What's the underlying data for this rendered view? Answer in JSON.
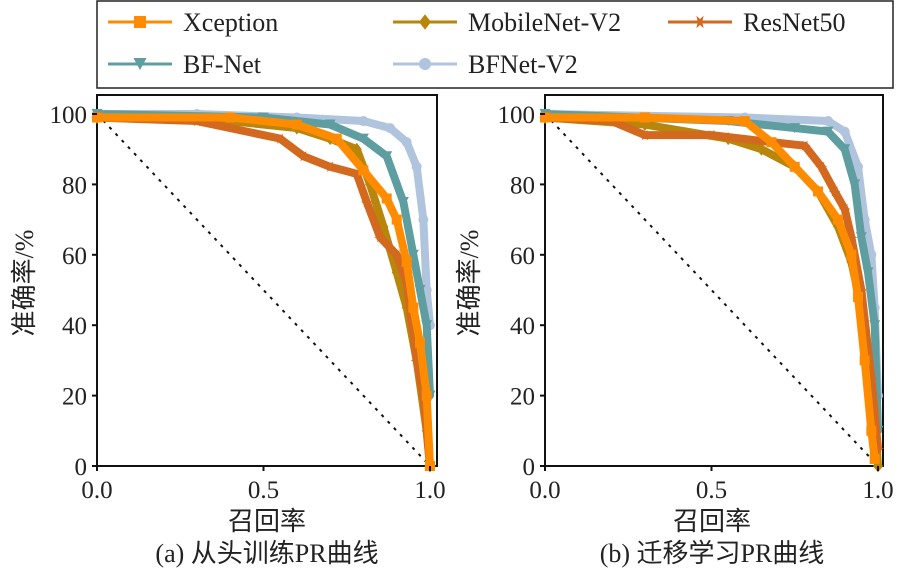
{
  "chart_data": {
    "legend": {
      "placement": "top",
      "entries": [
        {
          "name": "Xception",
          "color": "#FF8C00",
          "marker": "square"
        },
        {
          "name": "MobileNet-V2",
          "color": "#B8860B",
          "marker": "diamond"
        },
        {
          "name": "ResNet50",
          "color": "#D2691E",
          "marker": "star"
        },
        {
          "name": "BF-Net",
          "color": "#5F9EA0",
          "marker": "triangle-down"
        },
        {
          "name": "BFNet-V2",
          "color": "#B0C4DE",
          "marker": "circle"
        }
      ]
    },
    "panels": [
      {
        "type": "line",
        "caption": "(a) 从头训练PR曲线",
        "xlabel": "召回率",
        "ylabel": "准确率/%",
        "xlim": [
          0,
          1
        ],
        "ylim": [
          0,
          100
        ],
        "xticks": [
          "0.0",
          "0.5",
          "1.0"
        ],
        "yticks": [
          "0",
          "20",
          "40",
          "60",
          "80",
          "100"
        ],
        "grid": false,
        "baseline": {
          "x": [
            0,
            1
          ],
          "y": [
            100,
            0
          ],
          "style": "dotted"
        },
        "series": [
          {
            "name": "BFNet-V2",
            "x": [
              0,
              0.3,
              0.6,
              0.8,
              0.88,
              0.93,
              0.96,
              0.98,
              0.99,
              1.0
            ],
            "y": [
              100,
              100,
              99,
              98,
              96,
              92,
              85,
              70,
              50,
              40
            ]
          },
          {
            "name": "BF-Net",
            "x": [
              0,
              0.5,
              0.7,
              0.8,
              0.87,
              0.92,
              0.95,
              0.97,
              0.99,
              1.0
            ],
            "y": [
              100,
              99,
              97,
              93,
              88,
              75,
              60,
              50,
              40,
              20
            ]
          },
          {
            "name": "MobileNet-V2",
            "x": [
              0,
              0.4,
              0.6,
              0.7,
              0.78,
              0.82,
              0.86,
              0.9,
              0.93,
              0.96,
              0.99,
              1.0
            ],
            "y": [
              99,
              98,
              96,
              93,
              90,
              80,
              68,
              55,
              45,
              30,
              10,
              0
            ]
          },
          {
            "name": "ResNet50",
            "x": [
              0,
              0.3,
              0.55,
              0.62,
              0.7,
              0.78,
              0.81,
              0.85,
              0.9,
              0.93,
              0.96,
              0.98,
              1.0
            ],
            "y": [
              99,
              98,
              93,
              88,
              85,
              83,
              75,
              65,
              60,
              52,
              30,
              20,
              0
            ]
          },
          {
            "name": "Xception",
            "x": [
              0,
              0.4,
              0.6,
              0.72,
              0.8,
              0.87,
              0.9,
              0.93,
              0.95,
              0.97,
              0.99,
              1.0
            ],
            "y": [
              99,
              99,
              97,
              93,
              84,
              76,
              70,
              58,
              45,
              35,
              20,
              0
            ]
          }
        ]
      },
      {
        "type": "line",
        "caption": "(b) 迁移学习PR曲线",
        "xlabel": "召回率",
        "ylabel": "准确率/%",
        "xlim": [
          0,
          1
        ],
        "ylim": [
          0,
          100
        ],
        "xticks": [
          "0.0",
          "0.5",
          "1.0"
        ],
        "yticks": [
          "0",
          "20",
          "40",
          "60",
          "80",
          "100"
        ],
        "grid": false,
        "baseline": {
          "x": [
            0,
            1
          ],
          "y": [
            100,
            0
          ],
          "style": "dotted"
        },
        "series": [
          {
            "name": "BFNet-V2",
            "x": [
              0,
              0.6,
              0.85,
              0.9,
              0.94,
              0.96,
              0.98,
              0.99,
              1.0
            ],
            "y": [
              100,
              99,
              98,
              95,
              85,
              70,
              60,
              45,
              20
            ]
          },
          {
            "name": "BF-Net",
            "x": [
              0,
              0.55,
              0.75,
              0.85,
              0.9,
              0.93,
              0.95,
              0.97,
              0.99,
              1.0
            ],
            "y": [
              100,
              98,
              96,
              95,
              90,
              80,
              65,
              55,
              40,
              10
            ]
          },
          {
            "name": "MobileNet-V2",
            "x": [
              0,
              0.3,
              0.55,
              0.65,
              0.75,
              0.82,
              0.88,
              0.92,
              0.95,
              0.97,
              0.99,
              1.0
            ],
            "y": [
              99,
              97,
              93,
              90,
              85,
              78,
              68,
              58,
              45,
              30,
              15,
              0
            ]
          },
          {
            "name": "ResNet50",
            "x": [
              0,
              0.2,
              0.3,
              0.5,
              0.68,
              0.78,
              0.83,
              0.87,
              0.9,
              0.92,
              0.95,
              0.98,
              1.0
            ],
            "y": [
              99,
              98,
              94,
              94,
              92,
              91,
              85,
              78,
              73,
              65,
              50,
              25,
              5
            ]
          },
          {
            "name": "Xception",
            "x": [
              0,
              0.3,
              0.6,
              0.68,
              0.75,
              0.82,
              0.88,
              0.92,
              0.94,
              0.96,
              0.98,
              0.99
            ],
            "y": [
              99,
              99,
              98,
              92,
              85,
              78,
              70,
              60,
              48,
              30,
              10,
              2
            ]
          }
        ]
      }
    ]
  }
}
